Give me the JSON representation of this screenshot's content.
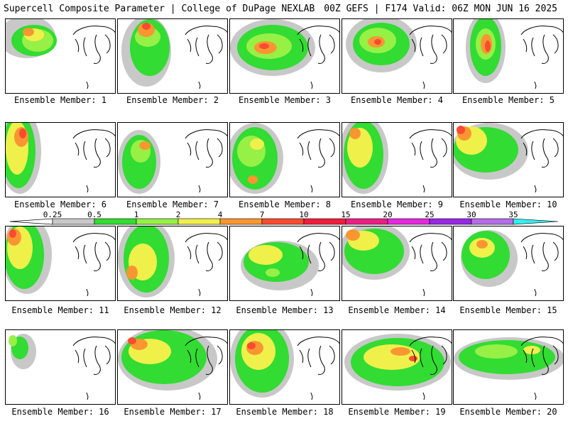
{
  "header": {
    "left": "Supercell Composite Parameter | College of DuPage NEXLAB",
    "right": "00Z GEFS | F174 Valid: 06Z MON JUN 16 2025"
  },
  "colorbar": {
    "ticks": [
      "0.25",
      "0.5",
      "1",
      "2",
      "4",
      "7",
      "10",
      "15",
      "20",
      "25",
      "30",
      "35"
    ],
    "colors": [
      "#c8c8c8",
      "#32dc32",
      "#96f046",
      "#f0f04b",
      "#fa9632",
      "#fa4b32",
      "#f01e3c",
      "#eb1e82",
      "#e628dc",
      "#9628e6",
      "#b46ee6",
      "#32f0f0"
    ]
  },
  "members": [
    {
      "caption": "Ensemble Member: 1"
    },
    {
      "caption": "Ensemble Member: 2"
    },
    {
      "caption": "Ensemble Member: 3"
    },
    {
      "caption": "Ensemble Member: 4"
    },
    {
      "caption": "Ensemble Member: 5"
    },
    {
      "caption": "Ensemble Member: 6"
    },
    {
      "caption": "Ensemble Member: 7"
    },
    {
      "caption": "Ensemble Member: 8"
    },
    {
      "caption": "Ensemble Member: 9"
    },
    {
      "caption": "Ensemble Member: 10"
    },
    {
      "caption": "Ensemble Member: 11"
    },
    {
      "caption": "Ensemble Member: 12"
    },
    {
      "caption": "Ensemble Member: 13"
    },
    {
      "caption": "Ensemble Member: 14"
    },
    {
      "caption": "Ensemble Member: 15"
    },
    {
      "caption": "Ensemble Member: 16"
    },
    {
      "caption": "Ensemble Member: 17"
    },
    {
      "caption": "Ensemble Member: 18"
    },
    {
      "caption": "Ensemble Member: 19"
    },
    {
      "caption": "Ensemble Member: 20"
    }
  ]
}
